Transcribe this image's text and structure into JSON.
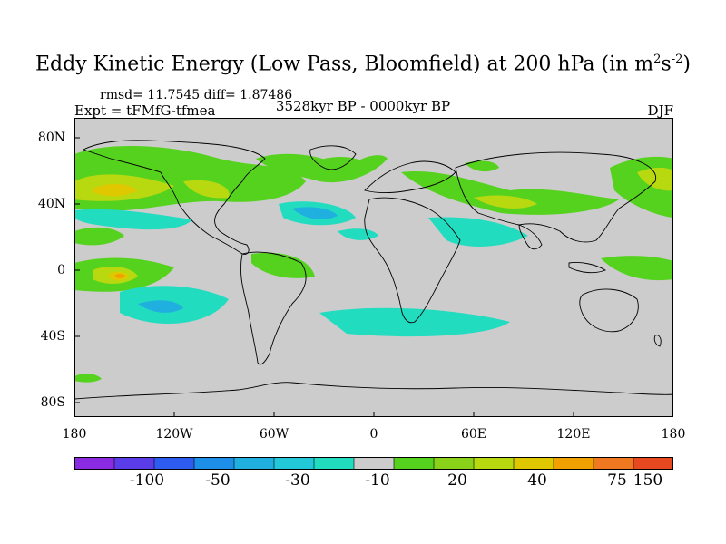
{
  "title": {
    "main": "Eddy Kinetic Energy (Low Pass, Bloomfield) at 200 hPa (in m",
    "sup1": "2",
    "mid": "s",
    "sup2": "-2",
    "end": ")"
  },
  "stats": "rmsd= 11.7545 diff= 1.87486",
  "expt": "Expt = tFMfG-tfmea",
  "period": "3528kyr BP - 0000kyr BP",
  "season": "DJF",
  "lat_labels": [
    "80N",
    "40N",
    "0",
    "40S",
    "80S"
  ],
  "lon_labels": [
    "180",
    "120W",
    "60W",
    "0",
    "60E",
    "120E",
    "180"
  ],
  "colorbar": {
    "colors": [
      "#8a2be2",
      "#5a3ce8",
      "#2f5cf0",
      "#1e8fe8",
      "#1fb0e0",
      "#22c8d8",
      "#22dcc0",
      "#cccccc",
      "#55d21e",
      "#8ad21a",
      "#b8d810",
      "#e0c800",
      "#f0a000",
      "#f07820",
      "#e84820"
    ],
    "labels": [
      "-100",
      "-50",
      "-30",
      "-10",
      "20",
      "40",
      "75",
      "150"
    ]
  },
  "colors": {
    "land_bg": "#cccccc",
    "green": "#55d21e",
    "yellowgreen": "#b8d810",
    "gold": "#e0c800",
    "orange": "#f0a000",
    "cyan": "#22c8d8",
    "teal": "#22dcc0",
    "blue": "#1fb0e0"
  }
}
